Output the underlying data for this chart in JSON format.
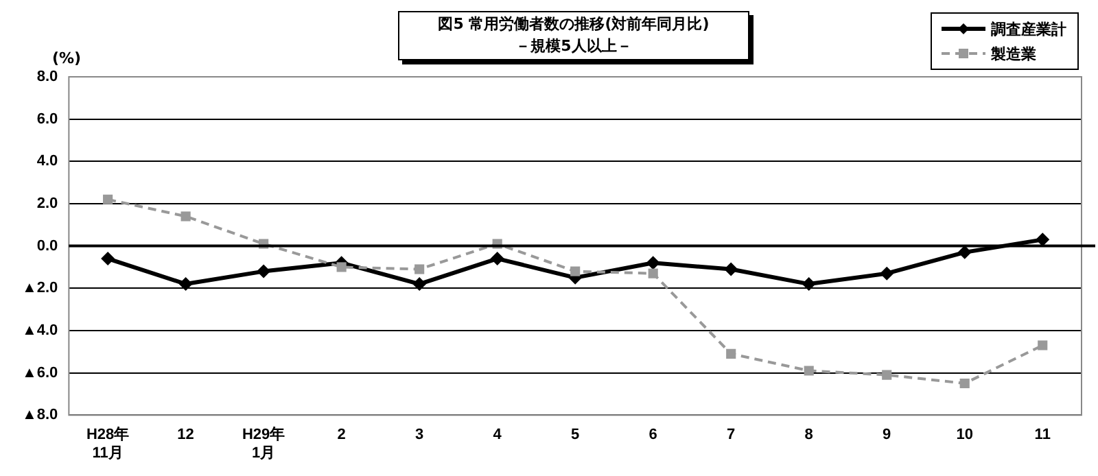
{
  "chart_data": {
    "type": "line",
    "title": "図5  常用労働者数の推移(対前年同月比)",
    "subtitle": "－規模5人以上－",
    "ylabel": "(%)",
    "categories": [
      "H28年\n11月",
      "12",
      "H29年\n1月",
      "2",
      "3",
      "4",
      "5",
      "6",
      "7",
      "8",
      "9",
      "10",
      "11"
    ],
    "series": [
      {
        "name": "調査産業計",
        "color": "#000000",
        "marker": "diamond",
        "line_style": "solid",
        "values": [
          -0.6,
          -1.8,
          -1.2,
          -0.8,
          -1.8,
          -0.6,
          -1.5,
          -0.8,
          -1.1,
          -1.8,
          -1.3,
          -0.3,
          0.3
        ]
      },
      {
        "name": "製造業",
        "color": "#999999",
        "marker": "square",
        "line_style": "dashed",
        "values": [
          2.2,
          1.4,
          0.1,
          -1.0,
          -1.1,
          0.1,
          -1.2,
          -1.3,
          -5.1,
          -5.9,
          -6.1,
          -6.5,
          -4.7
        ]
      }
    ],
    "ylim": [
      -8,
      8
    ],
    "yticks": [
      {
        "value": -8,
        "label": "▲8.0"
      },
      {
        "value": -6,
        "label": "▲6.0"
      },
      {
        "value": -4,
        "label": "▲4.0"
      },
      {
        "value": -2,
        "label": "▲2.0"
      },
      {
        "value": 0,
        "label": "0.0"
      },
      {
        "value": 2,
        "label": "2.0"
      },
      {
        "value": 4,
        "label": "4.0"
      },
      {
        "value": 6,
        "label": "6.0"
      },
      {
        "value": 8,
        "label": "8.0"
      }
    ],
    "ref_lines": [
      {
        "axis": "y",
        "value": 0,
        "color": "#000000"
      }
    ],
    "grid": "y",
    "legend": "top right"
  }
}
